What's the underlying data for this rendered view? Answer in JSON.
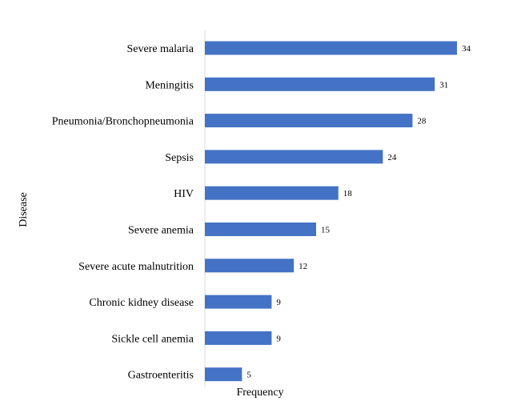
{
  "chart_data": {
    "type": "bar",
    "orientation": "horizontal",
    "title": "",
    "xlabel": "Frequency",
    "ylabel": "Disease",
    "categories": [
      "Severe malaria",
      "Meningitis",
      "Pneumonia/Bronchopneumonia",
      "Sepsis",
      "HIV",
      "Severe anemia",
      "Severe acute malnutrition",
      "Chronic kidney disease",
      "Sickle cell anemia",
      "Gastroenteritis"
    ],
    "values": [
      34,
      31,
      28,
      24,
      18,
      15,
      12,
      9,
      9,
      5
    ],
    "xlim": [
      0,
      34
    ],
    "grid": false,
    "legend": "none",
    "bar_color": "#4472C4",
    "axis_color": "#D9D9D9"
  }
}
